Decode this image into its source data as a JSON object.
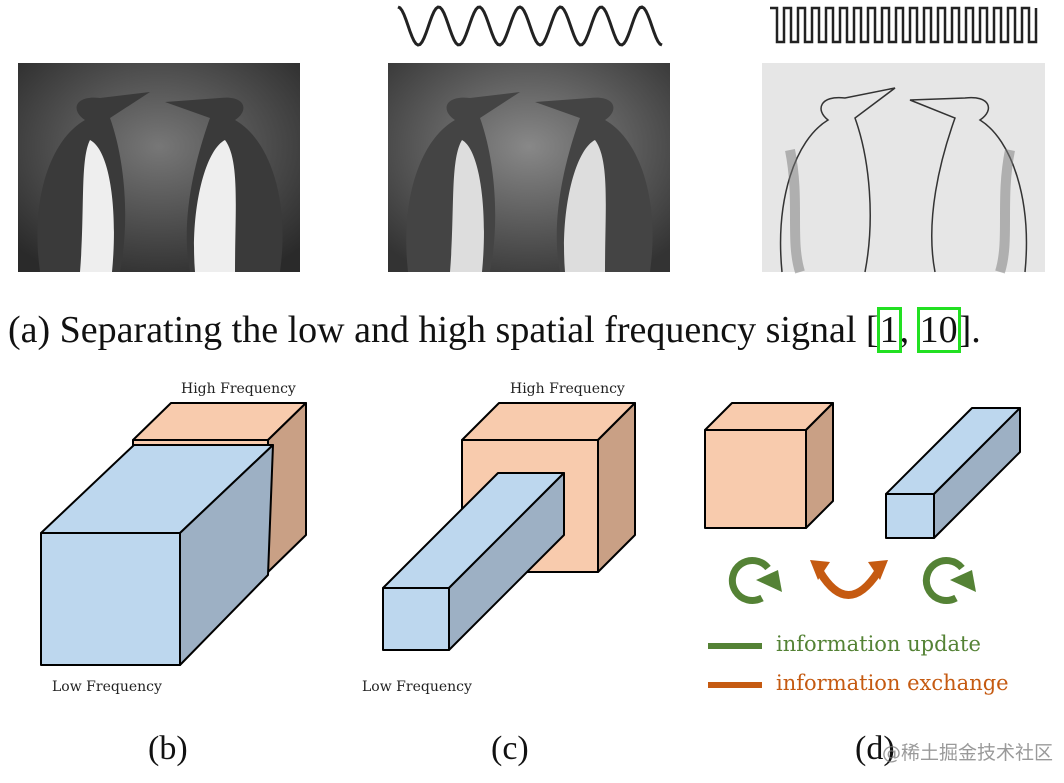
{
  "panel_a": {
    "caption_prefix": "(a) Separating the low and high spatial frequency signal [",
    "citation_1": "1",
    "separator": ", ",
    "citation_2": "10",
    "caption_suffix": "]."
  },
  "panel_b": {
    "high_label": "High Frequency",
    "low_label": "Low Frequency",
    "caption": "(b)"
  },
  "panel_c": {
    "high_label": "High Frequency",
    "low_label": "Low Frequency",
    "caption": "(c)"
  },
  "panel_d": {
    "caption": "(d)",
    "legend": [
      {
        "label": "information update",
        "color": "#548235"
      },
      {
        "label": "information exchange",
        "color": "#c55a11"
      }
    ]
  },
  "colors": {
    "low_frequency": "#bdd7ee",
    "high_frequency": "#f8cbad",
    "citation_box": "#22e022"
  },
  "watermark": "@稀土掘金技术社区"
}
